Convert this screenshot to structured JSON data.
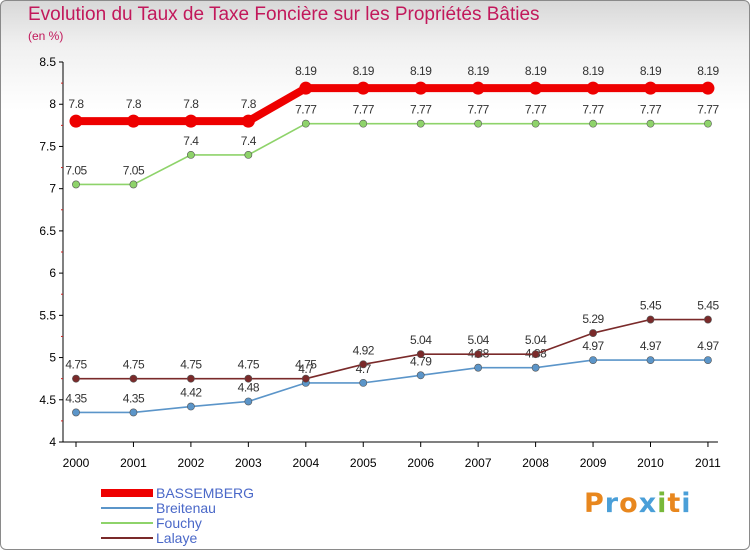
{
  "header": {
    "title": "Evolution du Taux de Taxe Foncière sur les Propriétés Bâties",
    "unit": "(en %)"
  },
  "chart_data": {
    "type": "line",
    "title": "Evolution du Taux de Taxe Foncière sur les Propriétés Bâties",
    "ylabel": "(en %)",
    "xlabel": "",
    "ylim": [
      4,
      8.5
    ],
    "yticks": [
      "4",
      "4.5",
      "5",
      "5.5",
      "6",
      "6.5",
      "7",
      "7.5",
      "8",
      "8.5"
    ],
    "x": [
      "2000",
      "2001",
      "2002",
      "2003",
      "2004",
      "2005",
      "2006",
      "2007",
      "2008",
      "2009",
      "2010",
      "2011"
    ],
    "series": [
      {
        "name": "BASSEMBERG",
        "color": "#ee0000",
        "values": [
          7.8,
          7.8,
          7.8,
          7.8,
          8.19,
          8.19,
          8.19,
          8.19,
          8.19,
          8.19,
          8.19,
          8.19
        ],
        "labels": [
          "7.8",
          "7.8",
          "7.8",
          "7.8",
          "8.19",
          "8.19",
          "8.19",
          "8.19",
          "8.19",
          "8.19",
          "8.19",
          "8.19"
        ]
      },
      {
        "name": "Breitenau",
        "color": "#5b95c9",
        "values": [
          4.35,
          4.35,
          4.42,
          4.48,
          4.7,
          4.7,
          4.79,
          4.88,
          4.88,
          4.97,
          4.97,
          4.97
        ],
        "labels": [
          "4.35",
          "4.35",
          "4.42",
          "4.48",
          "4.7",
          "4.7",
          "4.79",
          "4.88",
          "4.88",
          "4.97",
          "4.97",
          "4.97"
        ]
      },
      {
        "name": "Fouchy",
        "color": "#8ed36a",
        "values": [
          7.05,
          7.05,
          7.4,
          7.4,
          7.77,
          7.77,
          7.77,
          7.77,
          7.77,
          7.77,
          7.77,
          7.77
        ],
        "labels": [
          "7.05",
          "7.05",
          "7.4",
          "7.4",
          "7.77",
          "7.77",
          "7.77",
          "7.77",
          "7.77",
          "7.77",
          "7.77",
          "7.77"
        ]
      },
      {
        "name": "Lalaye",
        "color": "#7a2a2a",
        "values": [
          4.75,
          4.75,
          4.75,
          4.75,
          4.75,
          4.92,
          5.04,
          5.04,
          5.04,
          5.29,
          5.45,
          5.45
        ],
        "labels": [
          "4.75",
          "4.75",
          "4.75",
          "4.75",
          "4.75",
          "4.92",
          "5.04",
          "5.04",
          "5.04",
          "5.29",
          "5.45",
          "5.45"
        ]
      }
    ],
    "legend_position": "bottom-left"
  },
  "logo": {
    "letters": [
      "P",
      "r",
      "o",
      "x",
      "i",
      "t",
      "i"
    ]
  },
  "colors": {
    "title": "#c2185b",
    "legend_text": "#4a68c8",
    "logo": [
      "#e8871e",
      "#4a9fd8",
      "#e8871e",
      "#4a9fd8",
      "#78b83a",
      "#e8871e",
      "#4a9fd8"
    ]
  }
}
